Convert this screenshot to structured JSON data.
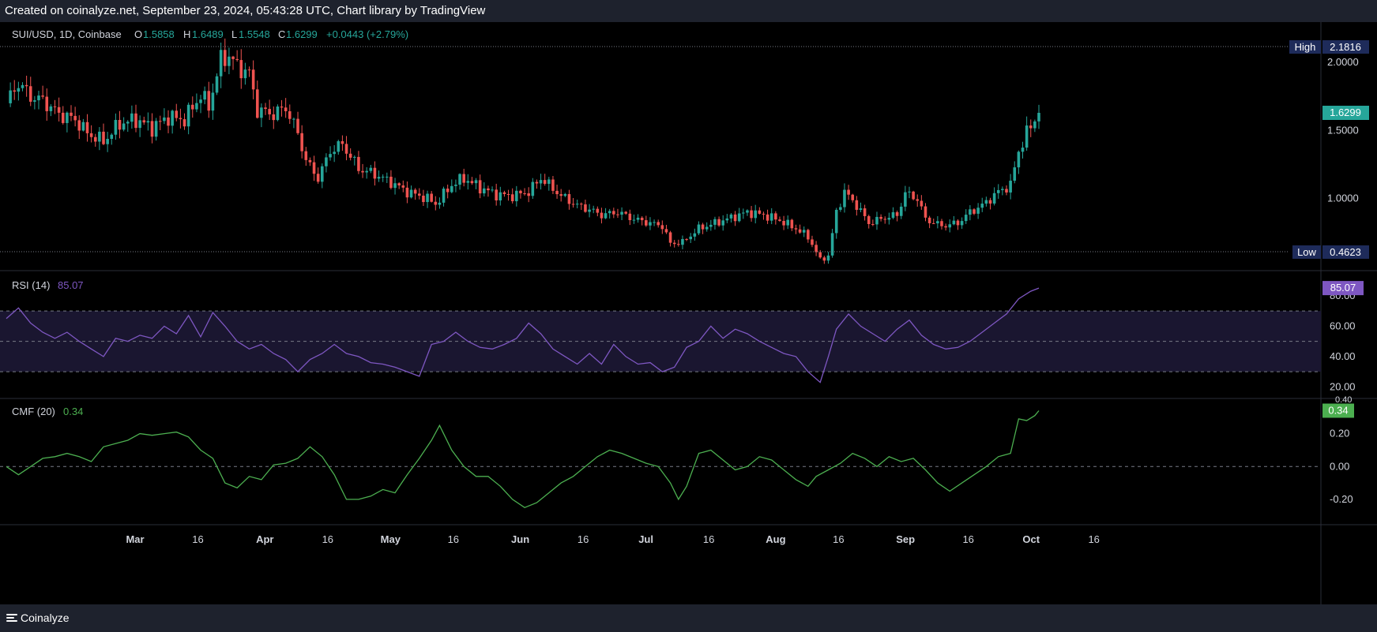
{
  "header": {
    "text": "Created on coinalyze.net, September 23, 2024, 05:43:28 UTC, Chart library by TradingView"
  },
  "footer": {
    "brand": "Coinalyze"
  },
  "colors": {
    "up": "#26a69a",
    "down": "#ef5350",
    "rsi": "#7e57c2",
    "cmf": "#4caf50",
    "background": "#000000",
    "axis_text": "#d1d4dc"
  },
  "chart_data": [
    {
      "type": "candlestick",
      "legend": {
        "symbol": "SUI/USD, 1D, Coinbase",
        "o_label": "O",
        "o": "1.5858",
        "h_label": "H",
        "h": "1.6489",
        "l_label": "L",
        "l": "1.5548",
        "c_label": "C",
        "c": "1.6299",
        "change": "+0.0443 (+2.79%)"
      },
      "ylim": [
        0.5,
        2.25
      ],
      "y_ticks": [
        "2.0000",
        "1.5000",
        "1.0000"
      ],
      "high_marker": {
        "label": "High",
        "value": "2.1816"
      },
      "low_marker": {
        "label": "Low",
        "value": "0.4623"
      },
      "last_price": "1.6299",
      "x_ticks": [
        "Mar",
        "16",
        "Apr",
        "16",
        "May",
        "16",
        "Jun",
        "16",
        "Jul",
        "16",
        "Aug",
        "16",
        "Sep",
        "16",
        "Oct",
        "16"
      ],
      "close_path": [
        [
          0,
          1.7
        ],
        [
          3,
          1.85
        ],
        [
          6,
          1.75
        ],
        [
          9,
          1.72
        ],
        [
          13,
          1.62
        ],
        [
          17,
          1.58
        ],
        [
          20,
          1.48
        ],
        [
          24,
          1.42
        ],
        [
          28,
          1.55
        ],
        [
          32,
          1.58
        ],
        [
          36,
          1.52
        ],
        [
          40,
          1.6
        ],
        [
          44,
          1.58
        ],
        [
          48,
          1.76
        ],
        [
          50,
          1.68
        ],
        [
          53,
          2.02
        ],
        [
          55,
          2.05
        ],
        [
          57,
          1.97
        ],
        [
          60,
          1.92
        ],
        [
          62,
          1.65
        ],
        [
          66,
          1.62
        ],
        [
          69,
          1.67
        ],
        [
          72,
          1.48
        ],
        [
          74,
          1.28
        ],
        [
          77,
          1.15
        ],
        [
          80,
          1.35
        ],
        [
          83,
          1.4
        ],
        [
          87,
          1.22
        ],
        [
          91,
          1.18
        ],
        [
          95,
          1.12
        ],
        [
          99,
          1.05
        ],
        [
          104,
          1.0
        ],
        [
          106,
          0.96
        ],
        [
          110,
          1.1
        ],
        [
          113,
          1.15
        ],
        [
          117,
          1.08
        ],
        [
          121,
          1.03
        ],
        [
          125,
          1.02
        ],
        [
          129,
          1.05
        ],
        [
          132,
          1.15
        ],
        [
          134,
          1.1
        ],
        [
          137,
          1.02
        ],
        [
          141,
          0.95
        ],
        [
          144,
          0.92
        ],
        [
          147,
          0.88
        ],
        [
          151,
          0.9
        ],
        [
          155,
          0.85
        ],
        [
          159,
          0.82
        ],
        [
          162,
          0.8
        ],
        [
          164,
          0.67
        ],
        [
          167,
          0.68
        ],
        [
          171,
          0.78
        ],
        [
          175,
          0.82
        ],
        [
          179,
          0.86
        ],
        [
          183,
          0.9
        ],
        [
          187,
          0.88
        ],
        [
          191,
          0.84
        ],
        [
          195,
          0.78
        ],
        [
          198,
          0.72
        ],
        [
          201,
          0.55
        ],
        [
          203,
          0.58
        ],
        [
          205,
          0.9
        ],
        [
          207,
          1.05
        ],
        [
          210,
          0.95
        ],
        [
          213,
          0.82
        ],
        [
          217,
          0.86
        ],
        [
          220,
          0.88
        ],
        [
          222,
          1.04
        ],
        [
          225,
          1.0
        ],
        [
          227,
          0.85
        ],
        [
          231,
          0.8
        ],
        [
          235,
          0.82
        ],
        [
          238,
          0.9
        ],
        [
          241,
          0.95
        ],
        [
          245,
          1.05
        ],
        [
          248,
          1.1
        ],
        [
          250,
          1.35
        ],
        [
          252,
          1.48
        ],
        [
          255,
          1.63
        ]
      ]
    },
    {
      "type": "line",
      "name_label": "RSI (14)",
      "current": "85.07",
      "ylim": [
        15,
        95
      ],
      "y_ticks": [
        "80.00",
        "60.00",
        "40.00",
        "20.00"
      ],
      "bands": [
        70,
        50,
        30
      ],
      "points": [
        [
          0,
          65
        ],
        [
          3,
          72
        ],
        [
          6,
          62
        ],
        [
          9,
          56
        ],
        [
          12,
          52
        ],
        [
          15,
          56
        ],
        [
          18,
          50
        ],
        [
          21,
          45
        ],
        [
          24,
          40
        ],
        [
          27,
          52
        ],
        [
          30,
          50
        ],
        [
          33,
          54
        ],
        [
          36,
          52
        ],
        [
          39,
          60
        ],
        [
          42,
          55
        ],
        [
          45,
          67
        ],
        [
          48,
          53
        ],
        [
          51,
          69
        ],
        [
          54,
          60
        ],
        [
          57,
          50
        ],
        [
          60,
          45
        ],
        [
          63,
          48
        ],
        [
          66,
          42
        ],
        [
          69,
          38
        ],
        [
          72,
          30
        ],
        [
          75,
          38
        ],
        [
          78,
          42
        ],
        [
          81,
          48
        ],
        [
          84,
          42
        ],
        [
          87,
          40
        ],
        [
          90,
          36
        ],
        [
          93,
          35
        ],
        [
          96,
          33
        ],
        [
          99,
          30
        ],
        [
          102,
          27
        ],
        [
          105,
          48
        ],
        [
          108,
          50
        ],
        [
          111,
          56
        ],
        [
          114,
          50
        ],
        [
          117,
          46
        ],
        [
          120,
          45
        ],
        [
          123,
          48
        ],
        [
          126,
          52
        ],
        [
          129,
          62
        ],
        [
          132,
          55
        ],
        [
          135,
          45
        ],
        [
          138,
          40
        ],
        [
          141,
          35
        ],
        [
          144,
          42
        ],
        [
          147,
          35
        ],
        [
          150,
          48
        ],
        [
          153,
          40
        ],
        [
          156,
          35
        ],
        [
          159,
          36
        ],
        [
          162,
          30
        ],
        [
          165,
          33
        ],
        [
          168,
          46
        ],
        [
          171,
          50
        ],
        [
          174,
          60
        ],
        [
          177,
          52
        ],
        [
          180,
          58
        ],
        [
          183,
          55
        ],
        [
          186,
          50
        ],
        [
          189,
          46
        ],
        [
          192,
          42
        ],
        [
          195,
          40
        ],
        [
          198,
          30
        ],
        [
          201,
          23
        ],
        [
          203,
          40
        ],
        [
          205,
          58
        ],
        [
          208,
          68
        ],
        [
          211,
          60
        ],
        [
          214,
          55
        ],
        [
          217,
          50
        ],
        [
          220,
          58
        ],
        [
          223,
          64
        ],
        [
          226,
          54
        ],
        [
          229,
          48
        ],
        [
          232,
          45
        ],
        [
          235,
          46
        ],
        [
          238,
          50
        ],
        [
          241,
          56
        ],
        [
          244,
          62
        ],
        [
          247,
          68
        ],
        [
          250,
          78
        ],
        [
          253,
          83
        ],
        [
          255,
          85.07
        ]
      ]
    },
    {
      "type": "line",
      "name_label": "CMF (20)",
      "current": "0.34",
      "ylim": [
        -0.33,
        0.4
      ],
      "y_ticks": [
        "0.40",
        "0.20",
        "0.00",
        "-0.20"
      ],
      "zero_line": 0,
      "points": [
        [
          0,
          0.0
        ],
        [
          3,
          -0.05
        ],
        [
          6,
          0.0
        ],
        [
          9,
          0.05
        ],
        [
          12,
          0.06
        ],
        [
          15,
          0.08
        ],
        [
          18,
          0.06
        ],
        [
          21,
          0.03
        ],
        [
          24,
          0.12
        ],
        [
          27,
          0.14
        ],
        [
          30,
          0.16
        ],
        [
          33,
          0.2
        ],
        [
          36,
          0.19
        ],
        [
          39,
          0.2
        ],
        [
          42,
          0.21
        ],
        [
          45,
          0.18
        ],
        [
          48,
          0.1
        ],
        [
          51,
          0.05
        ],
        [
          54,
          -0.1
        ],
        [
          57,
          -0.13
        ],
        [
          60,
          -0.06
        ],
        [
          63,
          -0.08
        ],
        [
          66,
          0.01
        ],
        [
          69,
          0.02
        ],
        [
          72,
          0.05
        ],
        [
          75,
          0.12
        ],
        [
          78,
          0.06
        ],
        [
          81,
          -0.05
        ],
        [
          84,
          -0.2
        ],
        [
          87,
          -0.2
        ],
        [
          90,
          -0.18
        ],
        [
          93,
          -0.14
        ],
        [
          96,
          -0.16
        ],
        [
          99,
          -0.05
        ],
        [
          102,
          0.05
        ],
        [
          105,
          0.16
        ],
        [
          107,
          0.25
        ],
        [
          110,
          0.1
        ],
        [
          113,
          0.0
        ],
        [
          116,
          -0.06
        ],
        [
          119,
          -0.06
        ],
        [
          122,
          -0.12
        ],
        [
          125,
          -0.2
        ],
        [
          128,
          -0.25
        ],
        [
          131,
          -0.22
        ],
        [
          134,
          -0.16
        ],
        [
          137,
          -0.1
        ],
        [
          140,
          -0.06
        ],
        [
          143,
          0.0
        ],
        [
          146,
          0.06
        ],
        [
          149,
          0.1
        ],
        [
          152,
          0.08
        ],
        [
          155,
          0.05
        ],
        [
          158,
          0.02
        ],
        [
          161,
          0.0
        ],
        [
          164,
          -0.1
        ],
        [
          166,
          -0.2
        ],
        [
          168,
          -0.12
        ],
        [
          171,
          0.08
        ],
        [
          174,
          0.1
        ],
        [
          177,
          0.04
        ],
        [
          180,
          -0.02
        ],
        [
          183,
          0.0
        ],
        [
          186,
          0.06
        ],
        [
          189,
          0.04
        ],
        [
          192,
          -0.02
        ],
        [
          195,
          -0.08
        ],
        [
          198,
          -0.12
        ],
        [
          200,
          -0.06
        ],
        [
          203,
          -0.02
        ],
        [
          206,
          0.02
        ],
        [
          209,
          0.08
        ],
        [
          212,
          0.05
        ],
        [
          215,
          0.0
        ],
        [
          218,
          0.06
        ],
        [
          221,
          0.03
        ],
        [
          224,
          0.05
        ],
        [
          227,
          -0.02
        ],
        [
          230,
          -0.1
        ],
        [
          233,
          -0.15
        ],
        [
          236,
          -0.1
        ],
        [
          239,
          -0.05
        ],
        [
          242,
          0.0
        ],
        [
          245,
          0.06
        ],
        [
          248,
          0.08
        ],
        [
          250,
          0.29
        ],
        [
          252,
          0.28
        ],
        [
          254,
          0.31
        ],
        [
          255,
          0.34
        ]
      ]
    }
  ]
}
